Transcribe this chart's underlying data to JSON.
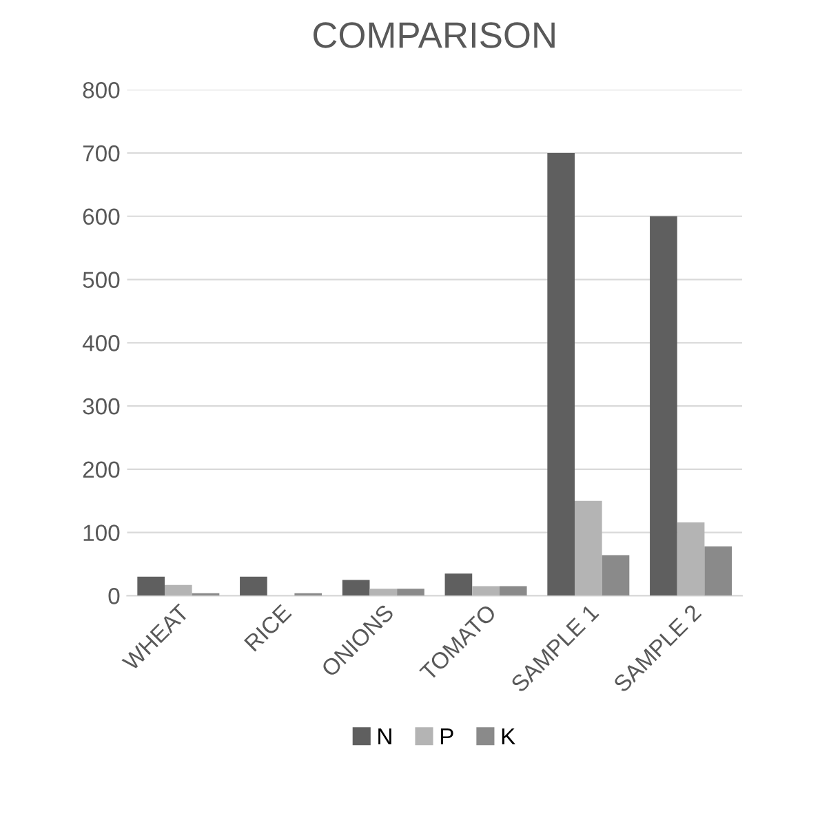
{
  "chart_data": {
    "type": "bar",
    "title": "COMPARISON",
    "categories": [
      "WHEAT",
      "RICE",
      "ONIONS",
      "TOMATO",
      "SAMPLE 1",
      "SAMPLE 2"
    ],
    "series": [
      {
        "name": "N",
        "color": "#5f5f5f",
        "values": [
          30,
          30,
          25,
          35,
          700,
          600
        ]
      },
      {
        "name": "P",
        "color": "#b4b4b4",
        "values": [
          17,
          null,
          11,
          15,
          150,
          116
        ]
      },
      {
        "name": "K",
        "color": "#8a8a8a",
        "values": [
          4,
          4,
          11,
          15,
          64,
          78
        ]
      }
    ],
    "ylim": [
      0,
      800
    ],
    "yticks": [
      0,
      100,
      200,
      300,
      400,
      500,
      600,
      700,
      800
    ],
    "grid": "y",
    "legend": "bottom"
  }
}
